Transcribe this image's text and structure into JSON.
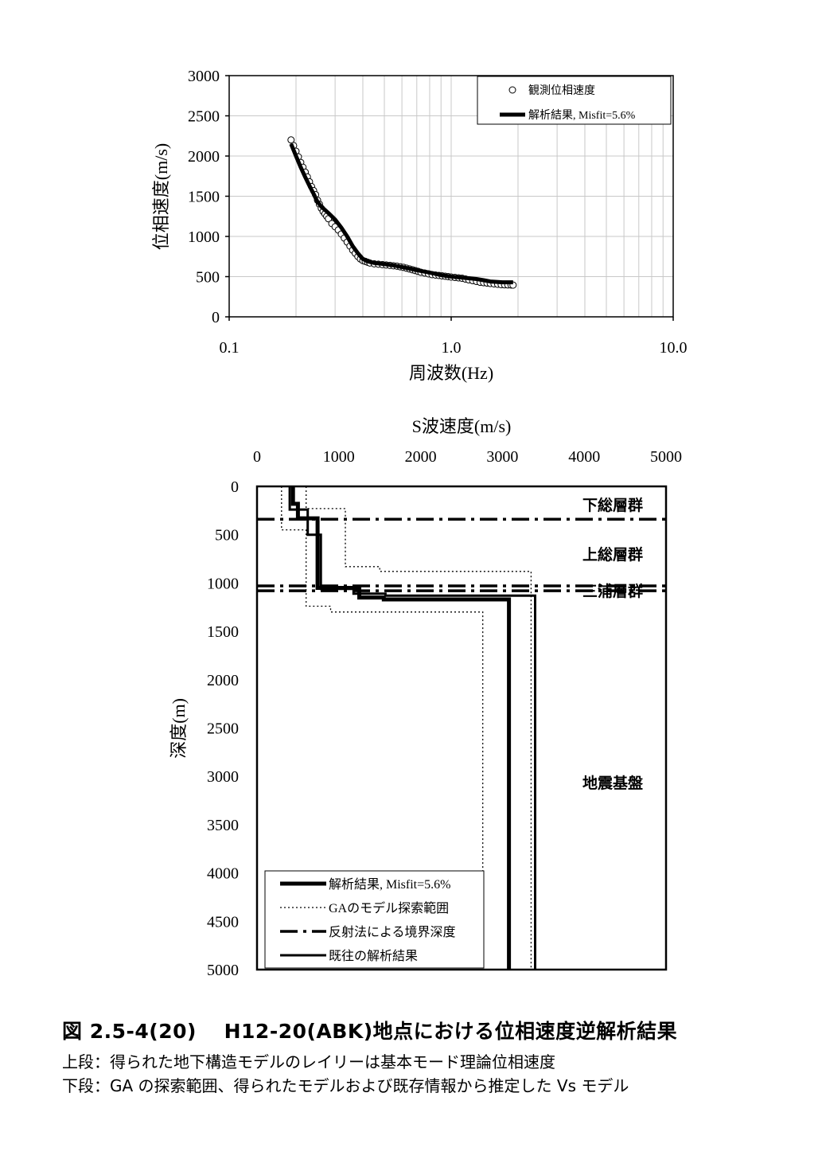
{
  "chart_data": [
    {
      "type": "scatter",
      "xlabel": "周波数(Hz)",
      "ylabel": "位相速度(m/s)",
      "xscale": "log",
      "xlim": [
        0.1,
        10.0
      ],
      "ylim": [
        0,
        3000
      ],
      "x_ticks": [
        "0.1",
        "1.0",
        "10.0"
      ],
      "y_ticks": [
        "0",
        "500",
        "1000",
        "1500",
        "2000",
        "2500",
        "3000"
      ],
      "grid": true,
      "legend_position": "top-right",
      "series": [
        {
          "name": "観測位相速度",
          "marker": "open-circle",
          "x": [
            0.19,
            0.195,
            0.2,
            0.205,
            0.21,
            0.215,
            0.22,
            0.225,
            0.23,
            0.235,
            0.24,
            0.245,
            0.25,
            0.255,
            0.26,
            0.265,
            0.27,
            0.275,
            0.28,
            0.29,
            0.3,
            0.31,
            0.32,
            0.33,
            0.34,
            0.35,
            0.36,
            0.37,
            0.38,
            0.39,
            0.4,
            0.41,
            0.42,
            0.43,
            0.45,
            0.47,
            0.49,
            0.51,
            0.53,
            0.55,
            0.57,
            0.59,
            0.61,
            0.63,
            0.65,
            0.67,
            0.69,
            0.71,
            0.73,
            0.76,
            0.79,
            0.82,
            0.85,
            0.88,
            0.91,
            0.94,
            0.97,
            1.0,
            1.04,
            1.08,
            1.12,
            1.16,
            1.2,
            1.25,
            1.3,
            1.35,
            1.4,
            1.45,
            1.5,
            1.56,
            1.62,
            1.68,
            1.74,
            1.8,
            1.86,
            1.9
          ],
          "y": [
            2200,
            2130,
            2060,
            1990,
            1920,
            1860,
            1800,
            1740,
            1680,
            1620,
            1570,
            1520,
            1450,
            1400,
            1350,
            1310,
            1280,
            1250,
            1220,
            1160,
            1120,
            1080,
            1030,
            980,
            930,
            880,
            830,
            790,
            750,
            720,
            700,
            690,
            680,
            670,
            660,
            655,
            650,
            645,
            640,
            635,
            630,
            622,
            615,
            605,
            595,
            585,
            575,
            565,
            555,
            545,
            535,
            525,
            520,
            515,
            510,
            505,
            500,
            495,
            490,
            485,
            480,
            470,
            460,
            450,
            440,
            430,
            425,
            420,
            415,
            410,
            405,
            400,
            398,
            397,
            396,
            395
          ]
        },
        {
          "name": "解析結果, Misfit=5.6%",
          "line": "solid-thick",
          "x": [
            0.19,
            0.2,
            0.21,
            0.22,
            0.23,
            0.24,
            0.25,
            0.26,
            0.28,
            0.3,
            0.32,
            0.34,
            0.36,
            0.38,
            0.4,
            0.42,
            0.45,
            0.5,
            0.55,
            0.6,
            0.65,
            0.7,
            0.8,
            0.9,
            1.0,
            1.1,
            1.2,
            1.3,
            1.4,
            1.5,
            1.6,
            1.7,
            1.8,
            1.9
          ],
          "y": [
            2150,
            2000,
            1860,
            1740,
            1630,
            1530,
            1430,
            1370,
            1290,
            1210,
            1110,
            1000,
            880,
            790,
            720,
            690,
            670,
            655,
            640,
            620,
            600,
            580,
            550,
            520,
            500,
            490,
            480,
            470,
            455,
            440,
            435,
            430,
            430,
            430
          ]
        }
      ]
    },
    {
      "type": "line",
      "xlabel": "S波速度(m/s)",
      "ylabel": "深度(m)",
      "xlim": [
        0,
        5000
      ],
      "ylim": [
        5000,
        0
      ],
      "x_ticks": [
        "0",
        "1000",
        "2000",
        "3000",
        "4000",
        "5000"
      ],
      "y_ticks": [
        "0",
        "500",
        "1000",
        "1500",
        "2000",
        "2500",
        "3000",
        "3500",
        "4000",
        "4500",
        "5000"
      ],
      "legend_position": "bottom-left",
      "annotations": [
        "下総層群",
        "上総層群",
        "三浦層群",
        "地震基盤"
      ],
      "series": [
        {
          "name": "解析結果, Misfit=5.6%",
          "style": "solid-thick",
          "points": [
            [
              440,
              0
            ],
            [
              440,
              180
            ],
            [
              500,
              180
            ],
            [
              500,
              330
            ],
            [
              740,
              330
            ],
            [
              740,
              1050
            ],
            [
              1250,
              1050
            ],
            [
              1250,
              1150
            ],
            [
              1550,
              1150
            ],
            [
              1550,
              1170
            ],
            [
              3080,
              1170
            ],
            [
              3080,
              5000
            ]
          ]
        },
        {
          "name": "GAのモデル探索範囲",
          "style": "dotted",
          "points": [
            [
              300,
              0
            ],
            [
              300,
              450
            ],
            [
              600,
              450
            ],
            [
              600,
              1240
            ],
            [
              900,
              1240
            ],
            [
              900,
              1300
            ],
            [
              2760,
              1300
            ],
            [
              2760,
              5000
            ]
          ]
        },
        {
          "name": "GAのモデル探索範囲",
          "style": "dotted",
          "points": [
            [
              600,
              0
            ],
            [
              600,
              230
            ],
            [
              1080,
              230
            ],
            [
              1080,
              830
            ],
            [
              1500,
              830
            ],
            [
              1500,
              880
            ],
            [
              3350,
              880
            ],
            [
              3350,
              5000
            ]
          ]
        },
        {
          "name": "反射法による境界深度",
          "style": "dash-dot",
          "depths": [
            340,
            1030,
            1080
          ]
        },
        {
          "name": "既往の解析結果",
          "style": "solid",
          "points": [
            [
              400,
              0
            ],
            [
              400,
              240
            ],
            [
              620,
              240
            ],
            [
              620,
              500
            ],
            [
              780,
              500
            ],
            [
              780,
              1060
            ],
            [
              1180,
              1060
            ],
            [
              1180,
              1110
            ],
            [
              1570,
              1110
            ],
            [
              1570,
              1130
            ],
            [
              3400,
              1130
            ],
            [
              3400,
              5000
            ]
          ]
        }
      ]
    }
  ],
  "labels": {
    "chart2_xlabel": "S波速度(m/s)",
    "chart2_ylabel": "深度(m)",
    "anno_shimousa": "下総層群",
    "anno_kazusa": "上総層群",
    "anno_miura": "三浦層群",
    "anno_bedrock": "地震基盤"
  },
  "caption": {
    "title": "図 2.5-4(20)　 H12-20(ABK)地点における位相速度逆解析結果",
    "line1": "上段：得られた地下構造モデルのレイリーは基本モード理論位相速度",
    "line2": "下段：GA の探索範囲、得られたモデルおよび既存情報から推定した Vs モデル"
  }
}
